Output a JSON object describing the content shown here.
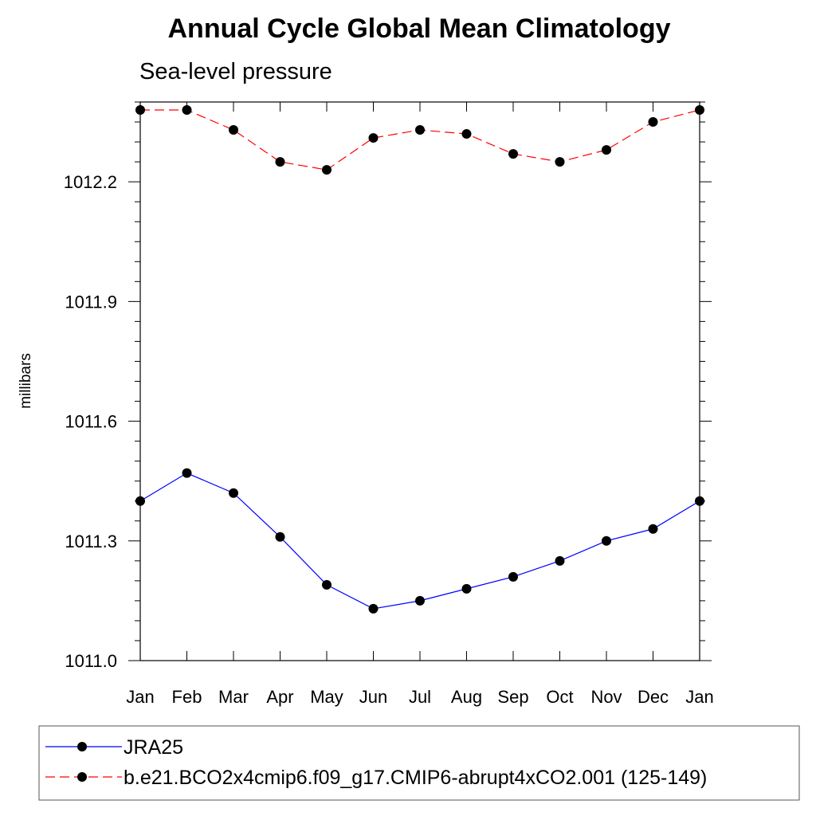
{
  "chart_data": {
    "type": "line",
    "title": "Annual Cycle Global Mean Climatology",
    "subtitle": "Sea-level pressure",
    "xlabel": "",
    "ylabel": "millibars",
    "categories": [
      "Jan",
      "Feb",
      "Mar",
      "Apr",
      "May",
      "Jun",
      "Jul",
      "Aug",
      "Sep",
      "Oct",
      "Nov",
      "Dec",
      "Jan"
    ],
    "ylim": [
      1011.0,
      1012.4
    ],
    "yticks": [
      "1011.0",
      "1011.3",
      "1011.6",
      "1011.9",
      "1012.2"
    ],
    "ytick_values": [
      1011.0,
      1011.3,
      1011.6,
      1011.9,
      1012.2
    ],
    "grid": false,
    "legend_position": "bottom",
    "series": [
      {
        "name": "JRA25",
        "color": "#0000ff",
        "dashed": false,
        "values": [
          1011.4,
          1011.47,
          1011.42,
          1011.31,
          1011.19,
          1011.13,
          1011.15,
          1011.18,
          1011.21,
          1011.25,
          1011.3,
          1011.33,
          1011.4
        ]
      },
      {
        "name": "b.e21.BCO2x4cmip6.f09_g17.CMIP6-abrupt4xCO2.001 (125-149)",
        "color": "#ff0000",
        "dashed": true,
        "values": [
          1012.38,
          1012.38,
          1012.33,
          1012.25,
          1012.23,
          1012.31,
          1012.33,
          1012.32,
          1012.27,
          1012.25,
          1012.28,
          1012.35,
          1012.38
        ]
      }
    ]
  }
}
